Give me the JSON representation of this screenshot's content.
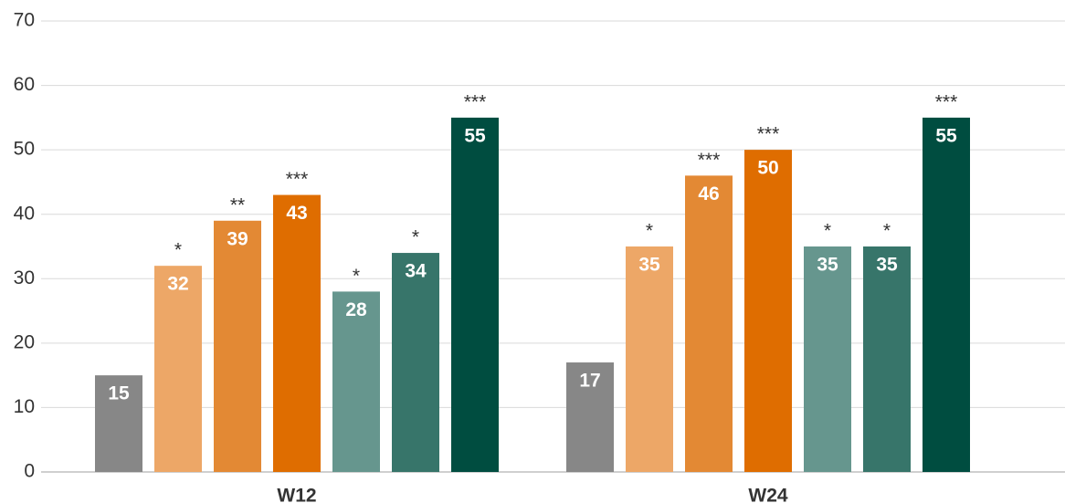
{
  "chart_data": {
    "type": "bar",
    "categories": [
      "W12",
      "W24"
    ],
    "series": [
      {
        "color": "#878787",
        "values": [
          15,
          17
        ],
        "significance": [
          null,
          null
        ]
      },
      {
        "color": "#eda767",
        "values": [
          32,
          35
        ],
        "significance": [
          "*",
          "*"
        ]
      },
      {
        "color": "#e38934",
        "values": [
          39,
          46
        ],
        "significance": [
          "**",
          "***"
        ]
      },
      {
        "color": "#df6d00",
        "values": [
          43,
          50
        ],
        "significance": [
          "***",
          "***"
        ]
      },
      {
        "color": "#66968e",
        "values": [
          28,
          35
        ],
        "significance": [
          "*",
          "*"
        ]
      },
      {
        "color": "#37756a",
        "values": [
          34,
          35
        ],
        "significance": [
          "*",
          "*"
        ]
      },
      {
        "color": "#004d40",
        "values": [
          55,
          55
        ],
        "significance": [
          "***",
          "***"
        ]
      }
    ],
    "ylim": [
      0,
      70
    ],
    "yticks": [
      0,
      10,
      20,
      30,
      40,
      50,
      60,
      70
    ],
    "grid": true
  }
}
